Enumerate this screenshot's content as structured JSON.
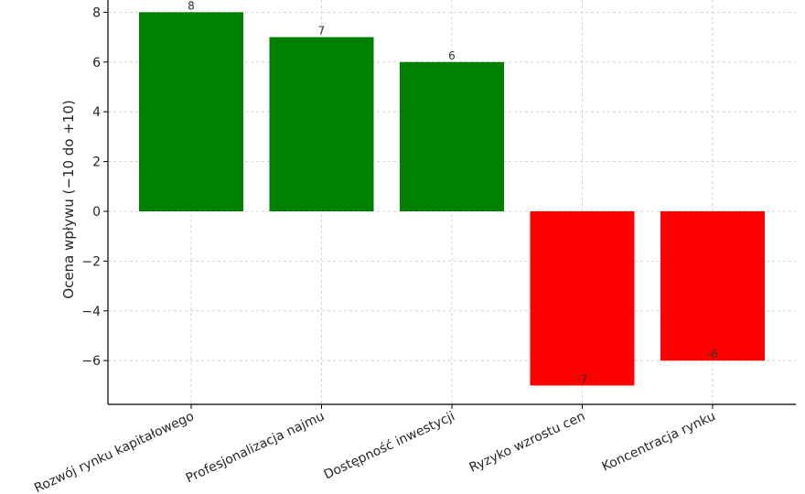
{
  "chart_data": {
    "type": "bar",
    "title": "",
    "xlabel": "",
    "ylabel": "Ocena wpływu (−10 do +10)",
    "categories": [
      "Rozwój rynku kapitałowego",
      "Profesjonalizacja najmu",
      "Dostępność inwestycji",
      "Ryzyko wzrostu cen",
      "Koncentracja rynku"
    ],
    "values": [
      8,
      7,
      6,
      -7,
      -6
    ],
    "data_labels": [
      "8",
      "7",
      "6",
      "-7",
      "-6"
    ],
    "bar_colors": [
      "#008000",
      "#008000",
      "#008000",
      "#ff0000",
      "#ff0000"
    ],
    "ylim": [
      -7.75,
      8.5
    ],
    "yticks": [
      8,
      6,
      4,
      2,
      0,
      -2,
      -4,
      -6
    ],
    "ytick_labels": [
      "8",
      "6",
      "4",
      "2",
      "0",
      "−2",
      "−4",
      "−6"
    ],
    "grid": true,
    "legend": "none"
  }
}
